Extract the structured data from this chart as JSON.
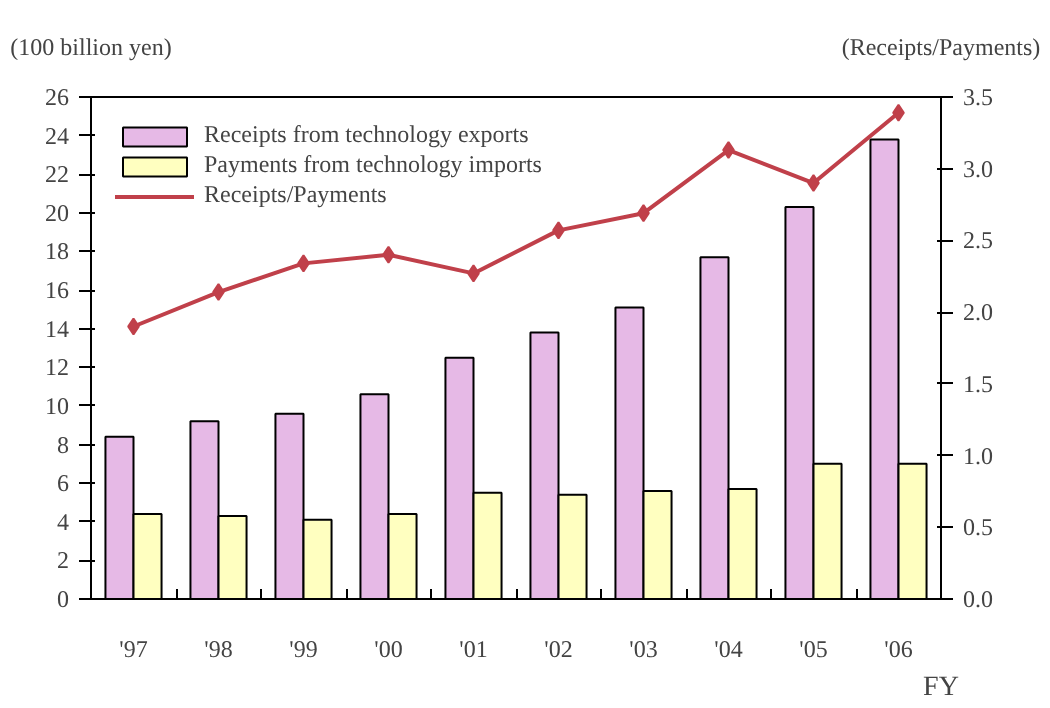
{
  "chart_data": {
    "type": "bar",
    "categories": [
      "'97",
      "'98",
      "'99",
      "'00",
      "'01",
      "'02",
      "'03",
      "'04",
      "'05",
      "'06"
    ],
    "xlabel": "FY",
    "ylabel": "(100 billion yen)",
    "y2label": "(Receipts/Payments)",
    "series": [
      {
        "name": "Receipts from technology exports",
        "color": "#e6b9e6",
        "values": [
          8.4,
          9.2,
          9.6,
          10.6,
          12.5,
          13.8,
          15.1,
          17.7,
          20.3,
          23.8
        ]
      },
      {
        "name": "Payments from technology imports",
        "color": "#ffffc0",
        "values": [
          4.4,
          4.3,
          4.1,
          4.4,
          5.5,
          5.4,
          5.6,
          5.7,
          7.0,
          7.0
        ]
      },
      {
        "name": "Receipts/Payments",
        "type": "line",
        "axis": "y2",
        "color": "#c0404a",
        "marker": "diamond",
        "values": [
          1.9,
          2.14,
          2.34,
          2.4,
          2.27,
          2.57,
          2.69,
          3.13,
          2.9,
          3.39
        ]
      }
    ],
    "ylim": [
      0,
      26
    ],
    "yticks": [
      0,
      2,
      4,
      6,
      8,
      10,
      12,
      14,
      16,
      18,
      20,
      22,
      24,
      26
    ],
    "y2lim": [
      0,
      3.5
    ],
    "y2ticks": [
      {
        "value": 0,
        "label": "0.0"
      },
      {
        "value": 0.5,
        "label": "0.5"
      },
      {
        "value": 1,
        "label": "1.0"
      },
      {
        "value": 1.5,
        "label": "1.5"
      },
      {
        "value": 2,
        "label": "2.0"
      },
      {
        "value": 2.5,
        "label": "2.5"
      },
      {
        "value": 3,
        "label": "3.0"
      },
      {
        "value": 3.5,
        "label": "3.5"
      }
    ],
    "legend": "top left",
    "grid": false
  }
}
